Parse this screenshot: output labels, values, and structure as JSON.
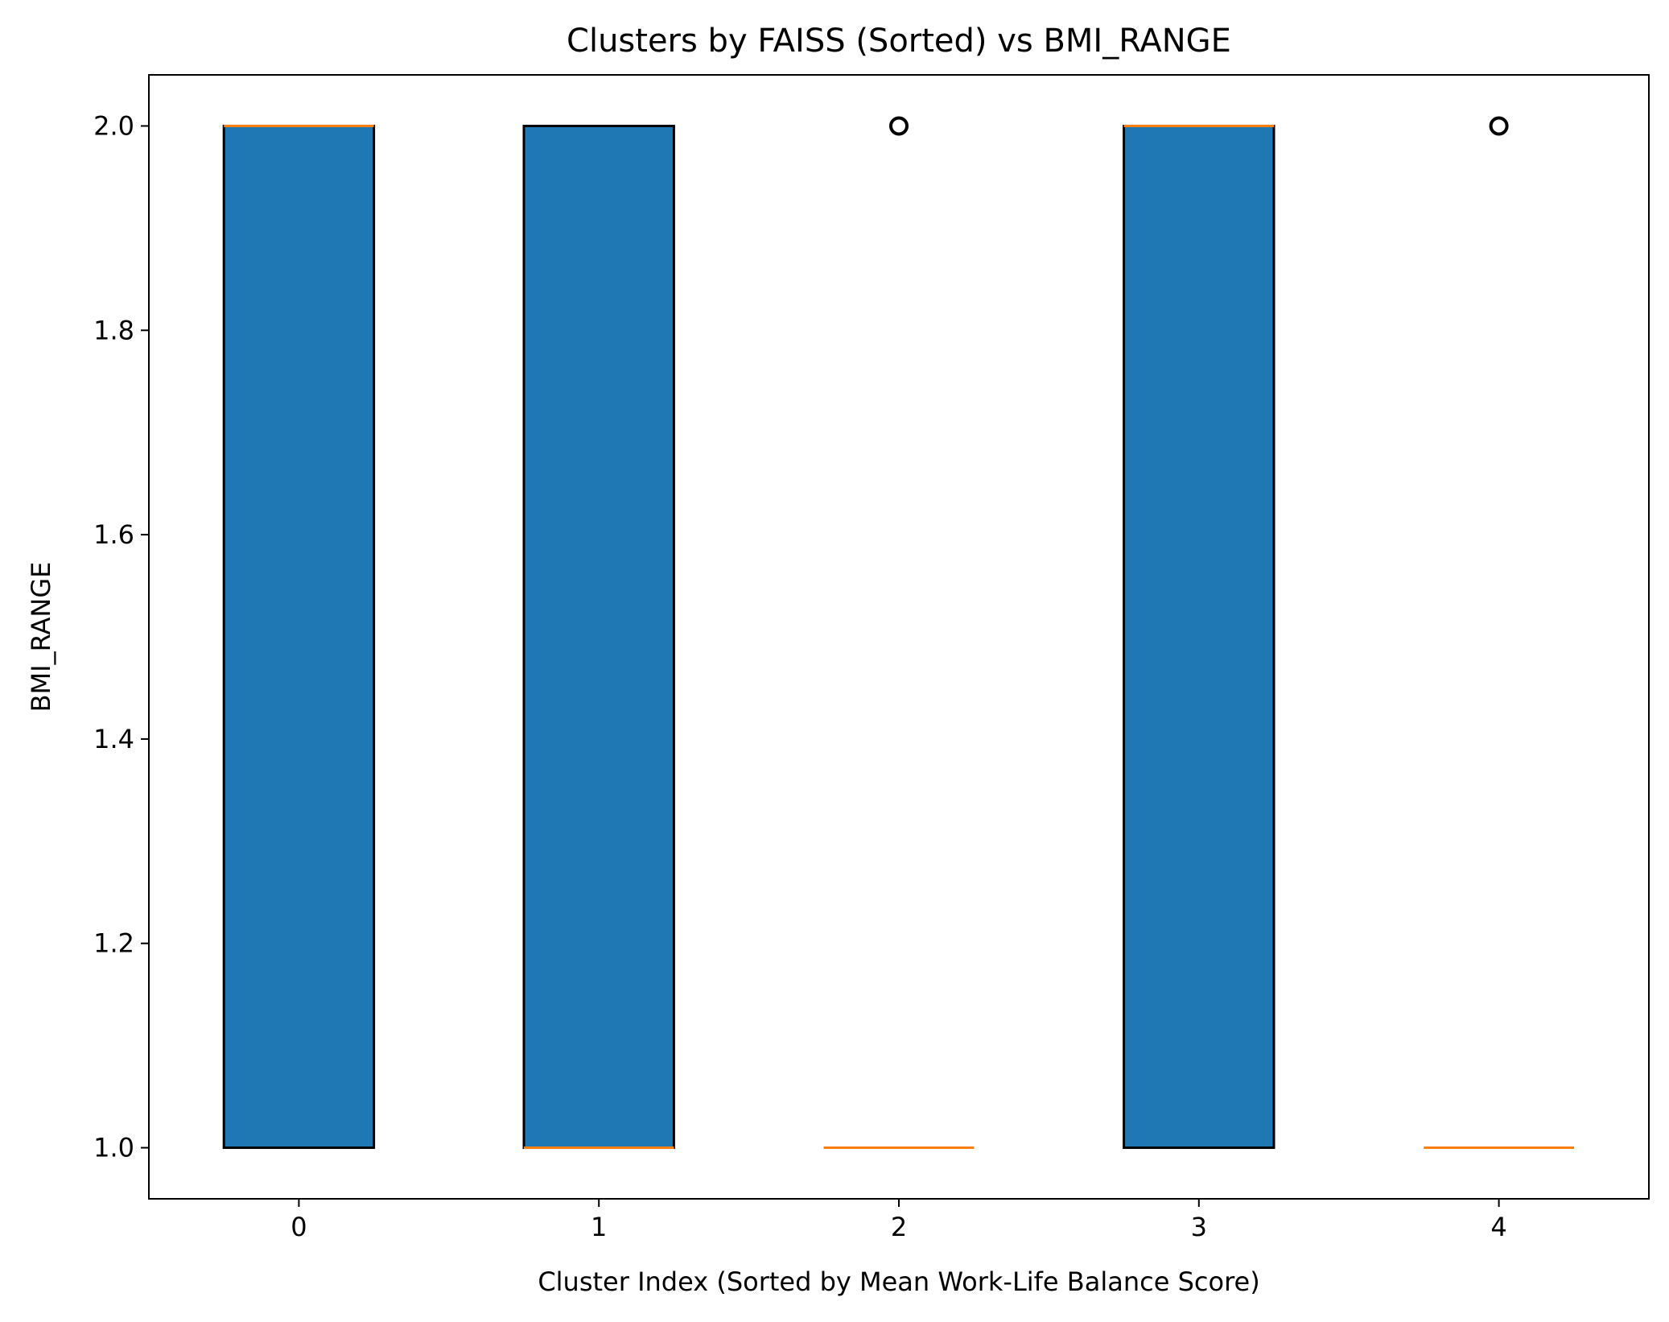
{
  "chart_data": {
    "type": "box",
    "title": "Clusters by FAISS (Sorted) vs BMI_RANGE",
    "xlabel": "Cluster Index (Sorted by Mean Work-Life Balance Score)",
    "ylabel": "BMI_RANGE",
    "categories": [
      "0",
      "1",
      "2",
      "3",
      "4"
    ],
    "xlim": [
      -0.5,
      4.5
    ],
    "ylim": [
      0.95,
      2.05
    ],
    "yticks": [
      "1.0",
      "1.2",
      "1.4",
      "1.6",
      "1.8",
      "2.0"
    ],
    "grid": false,
    "legend": "none",
    "boxes": [
      {
        "category": "0",
        "q1": 1.0,
        "median": 2.0,
        "q3": 2.0,
        "whisker_low": 1.0,
        "whisker_high": 2.0,
        "outliers": []
      },
      {
        "category": "1",
        "q1": 1.0,
        "median": 1.0,
        "q3": 2.0,
        "whisker_low": 1.0,
        "whisker_high": 2.0,
        "outliers": []
      },
      {
        "category": "2",
        "q1": 1.0,
        "median": 1.0,
        "q3": 1.0,
        "whisker_low": 1.0,
        "whisker_high": 1.0,
        "outliers": [
          2.0
        ]
      },
      {
        "category": "3",
        "q1": 1.0,
        "median": 2.0,
        "q3": 2.0,
        "whisker_low": 1.0,
        "whisker_high": 2.0,
        "outliers": []
      },
      {
        "category": "4",
        "q1": 1.0,
        "median": 1.0,
        "q3": 1.0,
        "whisker_low": 1.0,
        "whisker_high": 1.0,
        "outliers": [
          2.0
        ]
      }
    ],
    "colors": {
      "box_fill": "#1f77b4",
      "box_edge": "#000000",
      "median": "#ff7f0e",
      "outlier_edge": "#000000"
    }
  }
}
